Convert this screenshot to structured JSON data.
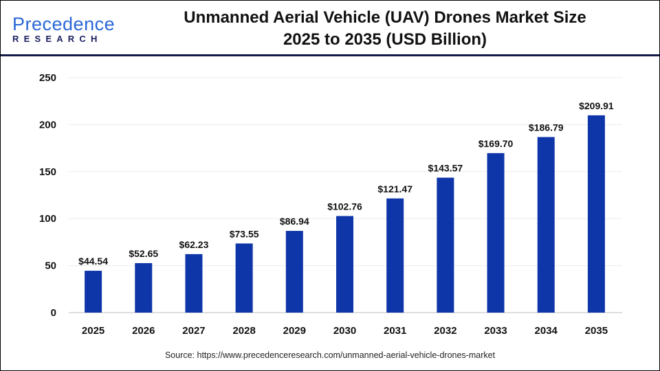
{
  "logo": {
    "text_main": "Precedence",
    "text_sub": "RESEARCH"
  },
  "title_line1": "Unmanned Aerial Vehicle (UAV) Drones Market Size",
  "title_line2": "2025 to 2035 (USD Billion)",
  "source": "Source: https://www.precedenceresearch.com/unmanned-aerial-vehicle-drones-market",
  "chart_data": {
    "type": "bar",
    "title": "Unmanned Aerial Vehicle (UAV) Drones Market Size 2025 to 2035 (USD Billion)",
    "categories": [
      "2025",
      "2026",
      "2027",
      "2028",
      "2029",
      "2030",
      "2031",
      "2032",
      "2033",
      "2034",
      "2035"
    ],
    "values": [
      44.54,
      52.65,
      62.23,
      73.55,
      86.94,
      102.76,
      121.47,
      143.57,
      169.7,
      186.79,
      209.91
    ],
    "labels": [
      "$44.54",
      "$52.65",
      "$62.23",
      "$73.55",
      "$86.94",
      "$102.76",
      "$121.47",
      "$143.57",
      "$169.70",
      "$186.79",
      "$209.91"
    ],
    "ylim": [
      0,
      250
    ],
    "yticks": [
      0,
      50,
      100,
      150,
      200,
      250
    ],
    "grid": true,
    "bar_color": "#0f36a8",
    "xlabel": "",
    "ylabel": ""
  }
}
